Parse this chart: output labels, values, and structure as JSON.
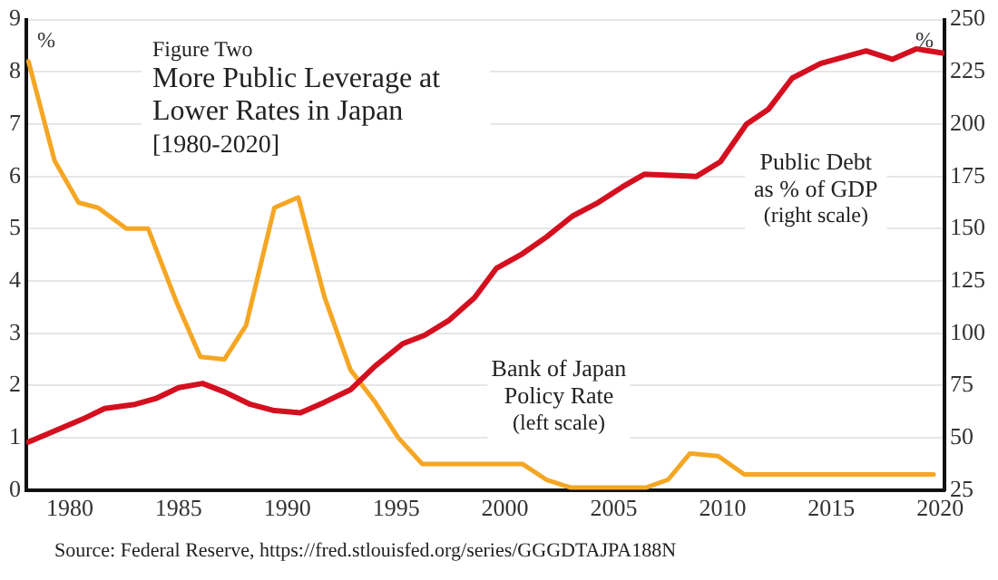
{
  "chart_data": {
    "type": "line",
    "title": "More Public Leverage at Lower Rates in Japan",
    "subtitle": "[1980-2020]",
    "ylabel": "%",
    "y2label": "%",
    "annotations": [
      "Figure Two",
      "Source: Federal Reserve, https://fred.stlouisfed.org/series/GGGDTAJPA188N"
    ],
    "xlim": [
      1978,
      2020.2
    ],
    "xticks": [
      1980,
      1985,
      1990,
      1995,
      2000,
      2005,
      2010,
      2015,
      2020
    ],
    "ylim": [
      0,
      9
    ],
    "yticks": [
      0,
      1,
      2,
      3,
      4,
      5,
      6,
      7,
      8,
      9
    ],
    "y2lim": [
      25,
      250
    ],
    "y2ticks": [
      25,
      50,
      75,
      100,
      125,
      150,
      175,
      200,
      225,
      250
    ],
    "grid": "y",
    "legend": false,
    "marker": "none",
    "line_style": "solid",
    "series": [
      {
        "name": "Public Debt\nas % of GDP\n(right scale)",
        "color": "#d40f1f",
        "axis": "y2",
        "x": [
          1978.1,
          1980.6,
          1981.6,
          1983,
          1984,
          1985,
          1986.1,
          1987.1,
          1988.3,
          1989.4,
          1990.6,
          1991.7,
          1992.9,
          1994,
          1995.3,
          1996.3,
          1997.4,
          1998.6,
          1999.6,
          2000.8,
          2001.9,
          2003.1,
          2004.2,
          2005.4,
          2006.4,
          2008.8,
          2009.9,
          2011.1,
          2012.1,
          2013.2,
          2014.5,
          2016.6,
          2017.8,
          2018.9,
          2020.1
        ],
        "values": [
          48,
          59,
          64,
          66,
          69,
          74,
          76,
          72,
          66,
          63,
          62,
          67,
          73,
          84,
          95,
          99,
          106,
          117,
          131,
          138,
          146,
          156,
          162,
          170,
          176,
          175,
          182,
          200,
          207,
          222,
          229,
          235,
          231,
          236,
          234
        ]
      },
      {
        "name": "Bank of Japan\nPolicy Rate\n(left scale)",
        "color": "#f5a623",
        "axis": "y",
        "x": [
          1978.1,
          1979.3,
          1980.4,
          1981.3,
          1982.6,
          1983.6,
          1984.9,
          1986,
          1987.1,
          1988.1,
          1989.4,
          1990.5,
          1991.7,
          1992.9,
          1994,
          1995.1,
          1996.2,
          2000.8,
          2001.9,
          2003,
          2006.5,
          2007.5,
          2008.5,
          2009.8,
          2011,
          2019.7
        ],
        "values": [
          8.2,
          6.3,
          5.5,
          5.4,
          5.0,
          5.0,
          3.6,
          2.55,
          2.5,
          3.15,
          5.4,
          5.6,
          3.7,
          2.3,
          1.7,
          1.0,
          0.5,
          0.5,
          0.2,
          0.05,
          0.05,
          0.2,
          0.7,
          0.65,
          0.3,
          0.3
        ]
      }
    ]
  }
}
